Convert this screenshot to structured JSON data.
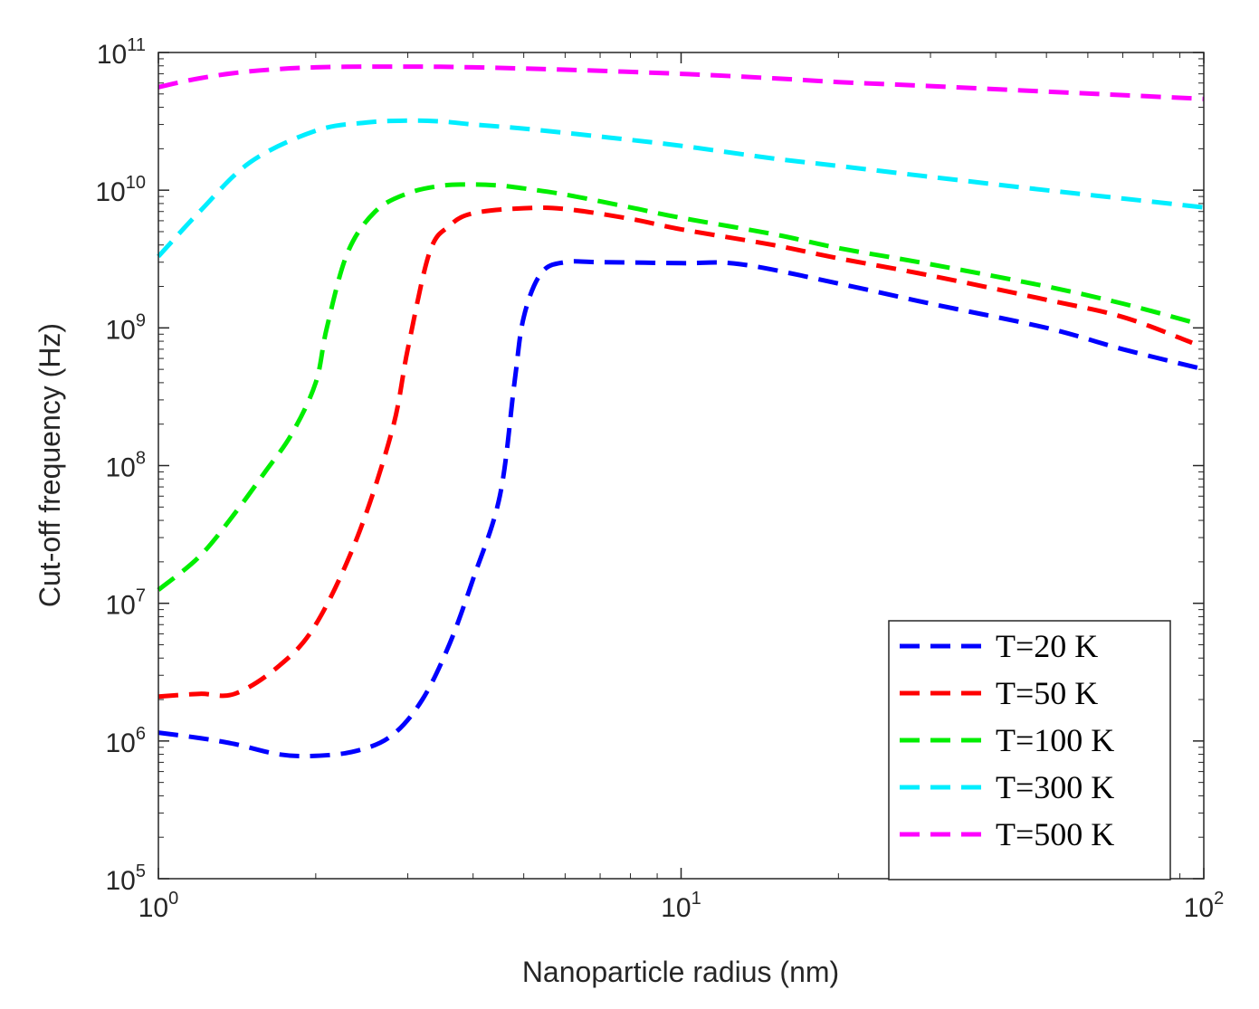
{
  "chart_data": {
    "type": "line",
    "title": "",
    "xlabel": "Nanoparticle radius (nm)",
    "ylabel": "Cut-off frequency (Hz)",
    "xscale": "log",
    "yscale": "log",
    "xlim": [
      1,
      100
    ],
    "ylim": [
      100000,
      100000000000
    ],
    "x_ticks": [
      {
        "value": 1,
        "base": "10",
        "exp": "0"
      },
      {
        "value": 10,
        "base": "10",
        "exp": "1"
      },
      {
        "value": 100,
        "base": "10",
        "exp": "2"
      }
    ],
    "y_ticks": [
      {
        "value": 100000,
        "base": "10",
        "exp": "5"
      },
      {
        "value": 1000000,
        "base": "10",
        "exp": "6"
      },
      {
        "value": 10000000,
        "base": "10",
        "exp": "7"
      },
      {
        "value": 100000000,
        "base": "10",
        "exp": "8"
      },
      {
        "value": 1000000000,
        "base": "10",
        "exp": "9"
      },
      {
        "value": 10000000000,
        "base": "10",
        "exp": "10"
      },
      {
        "value": 100000000000,
        "base": "10",
        "exp": "11"
      }
    ],
    "grid": false,
    "legend_position": "bottom-right",
    "series": [
      {
        "name": "T=20 K",
        "color": "#0000ff",
        "x": [
          1,
          1.2,
          1.4,
          1.7,
          2.0,
          2.4,
          2.8,
          3.2,
          3.6,
          4.0,
          4.5,
          4.8,
          5.0,
          5.4,
          6.0,
          7.0,
          10,
          13,
          20,
          30,
          50,
          70,
          100
        ],
        "y": [
          1150000,
          1050000,
          950000,
          800000,
          780000,
          850000,
          1100000,
          2000000,
          5000000,
          15000000,
          60000000,
          400000000,
          1200000000,
          2500000000,
          3000000000,
          3000000000,
          2950000000,
          2900000000,
          2100000000,
          1500000000,
          1000000000,
          700000000,
          500000000
        ]
      },
      {
        "name": "T=50 K",
        "color": "#ff0000",
        "x": [
          1,
          1.2,
          1.4,
          1.7,
          2.0,
          2.4,
          2.8,
          3.0,
          3.3,
          3.6,
          4.0,
          5.0,
          6.0,
          8.0,
          10,
          15,
          20,
          30,
          50,
          70,
          95
        ],
        "y": [
          2100000,
          2200000,
          2200000,
          3500000,
          7000000,
          30000000,
          180000000,
          700000000,
          3500000000,
          5500000000,
          6800000000,
          7400000000,
          7300000000,
          6200000000,
          5200000000,
          4000000000,
          3200000000,
          2400000000,
          1600000000,
          1200000000,
          780000000
        ]
      },
      {
        "name": "T=100 K",
        "color": "#00ee00",
        "x": [
          1,
          1.2,
          1.4,
          1.6,
          1.8,
          2.0,
          2.1,
          2.3,
          2.6,
          3.0,
          3.5,
          4.0,
          4.5,
          5.0,
          6.0,
          8.0,
          10,
          15,
          20,
          30,
          50,
          70,
          95
        ],
        "y": [
          12500000,
          22000000,
          45000000,
          90000000,
          170000000,
          400000000,
          1000000000,
          3500000000,
          7000000000,
          9500000000,
          10800000000,
          11000000000,
          10800000000,
          10300000000,
          9300000000,
          7500000000,
          6300000000,
          4800000000,
          3800000000,
          2900000000,
          2000000000,
          1500000000,
          1100000000
        ]
      },
      {
        "name": "T=300 K",
        "color": "#00eeff",
        "x": [
          1,
          1.2,
          1.5,
          2.0,
          2.5,
          3.0,
          3.5,
          4.0,
          5.0,
          7.0,
          10,
          15,
          20,
          30,
          50,
          70,
          100
        ],
        "y": [
          3300000000,
          7000000000,
          16000000000,
          27000000000,
          31000000000,
          32000000000,
          31500000000,
          30000000000,
          28000000000,
          24500000000,
          21000000000,
          17000000000,
          15000000000,
          12500000000,
          10000000000,
          8700000000,
          7500000000
        ]
      },
      {
        "name": "T=500 K",
        "color": "#ff00ff",
        "x": [
          1,
          1.2,
          1.5,
          2.0,
          3.0,
          4.0,
          6.0,
          10,
          15,
          20,
          30,
          50,
          70,
          100
        ],
        "y": [
          56000000000,
          65000000000,
          73000000000,
          78000000000,
          79000000000,
          78000000000,
          75000000000,
          70000000000,
          65000000000,
          61000000000,
          57000000000,
          52000000000,
          49000000000,
          46000000000
        ]
      }
    ]
  }
}
